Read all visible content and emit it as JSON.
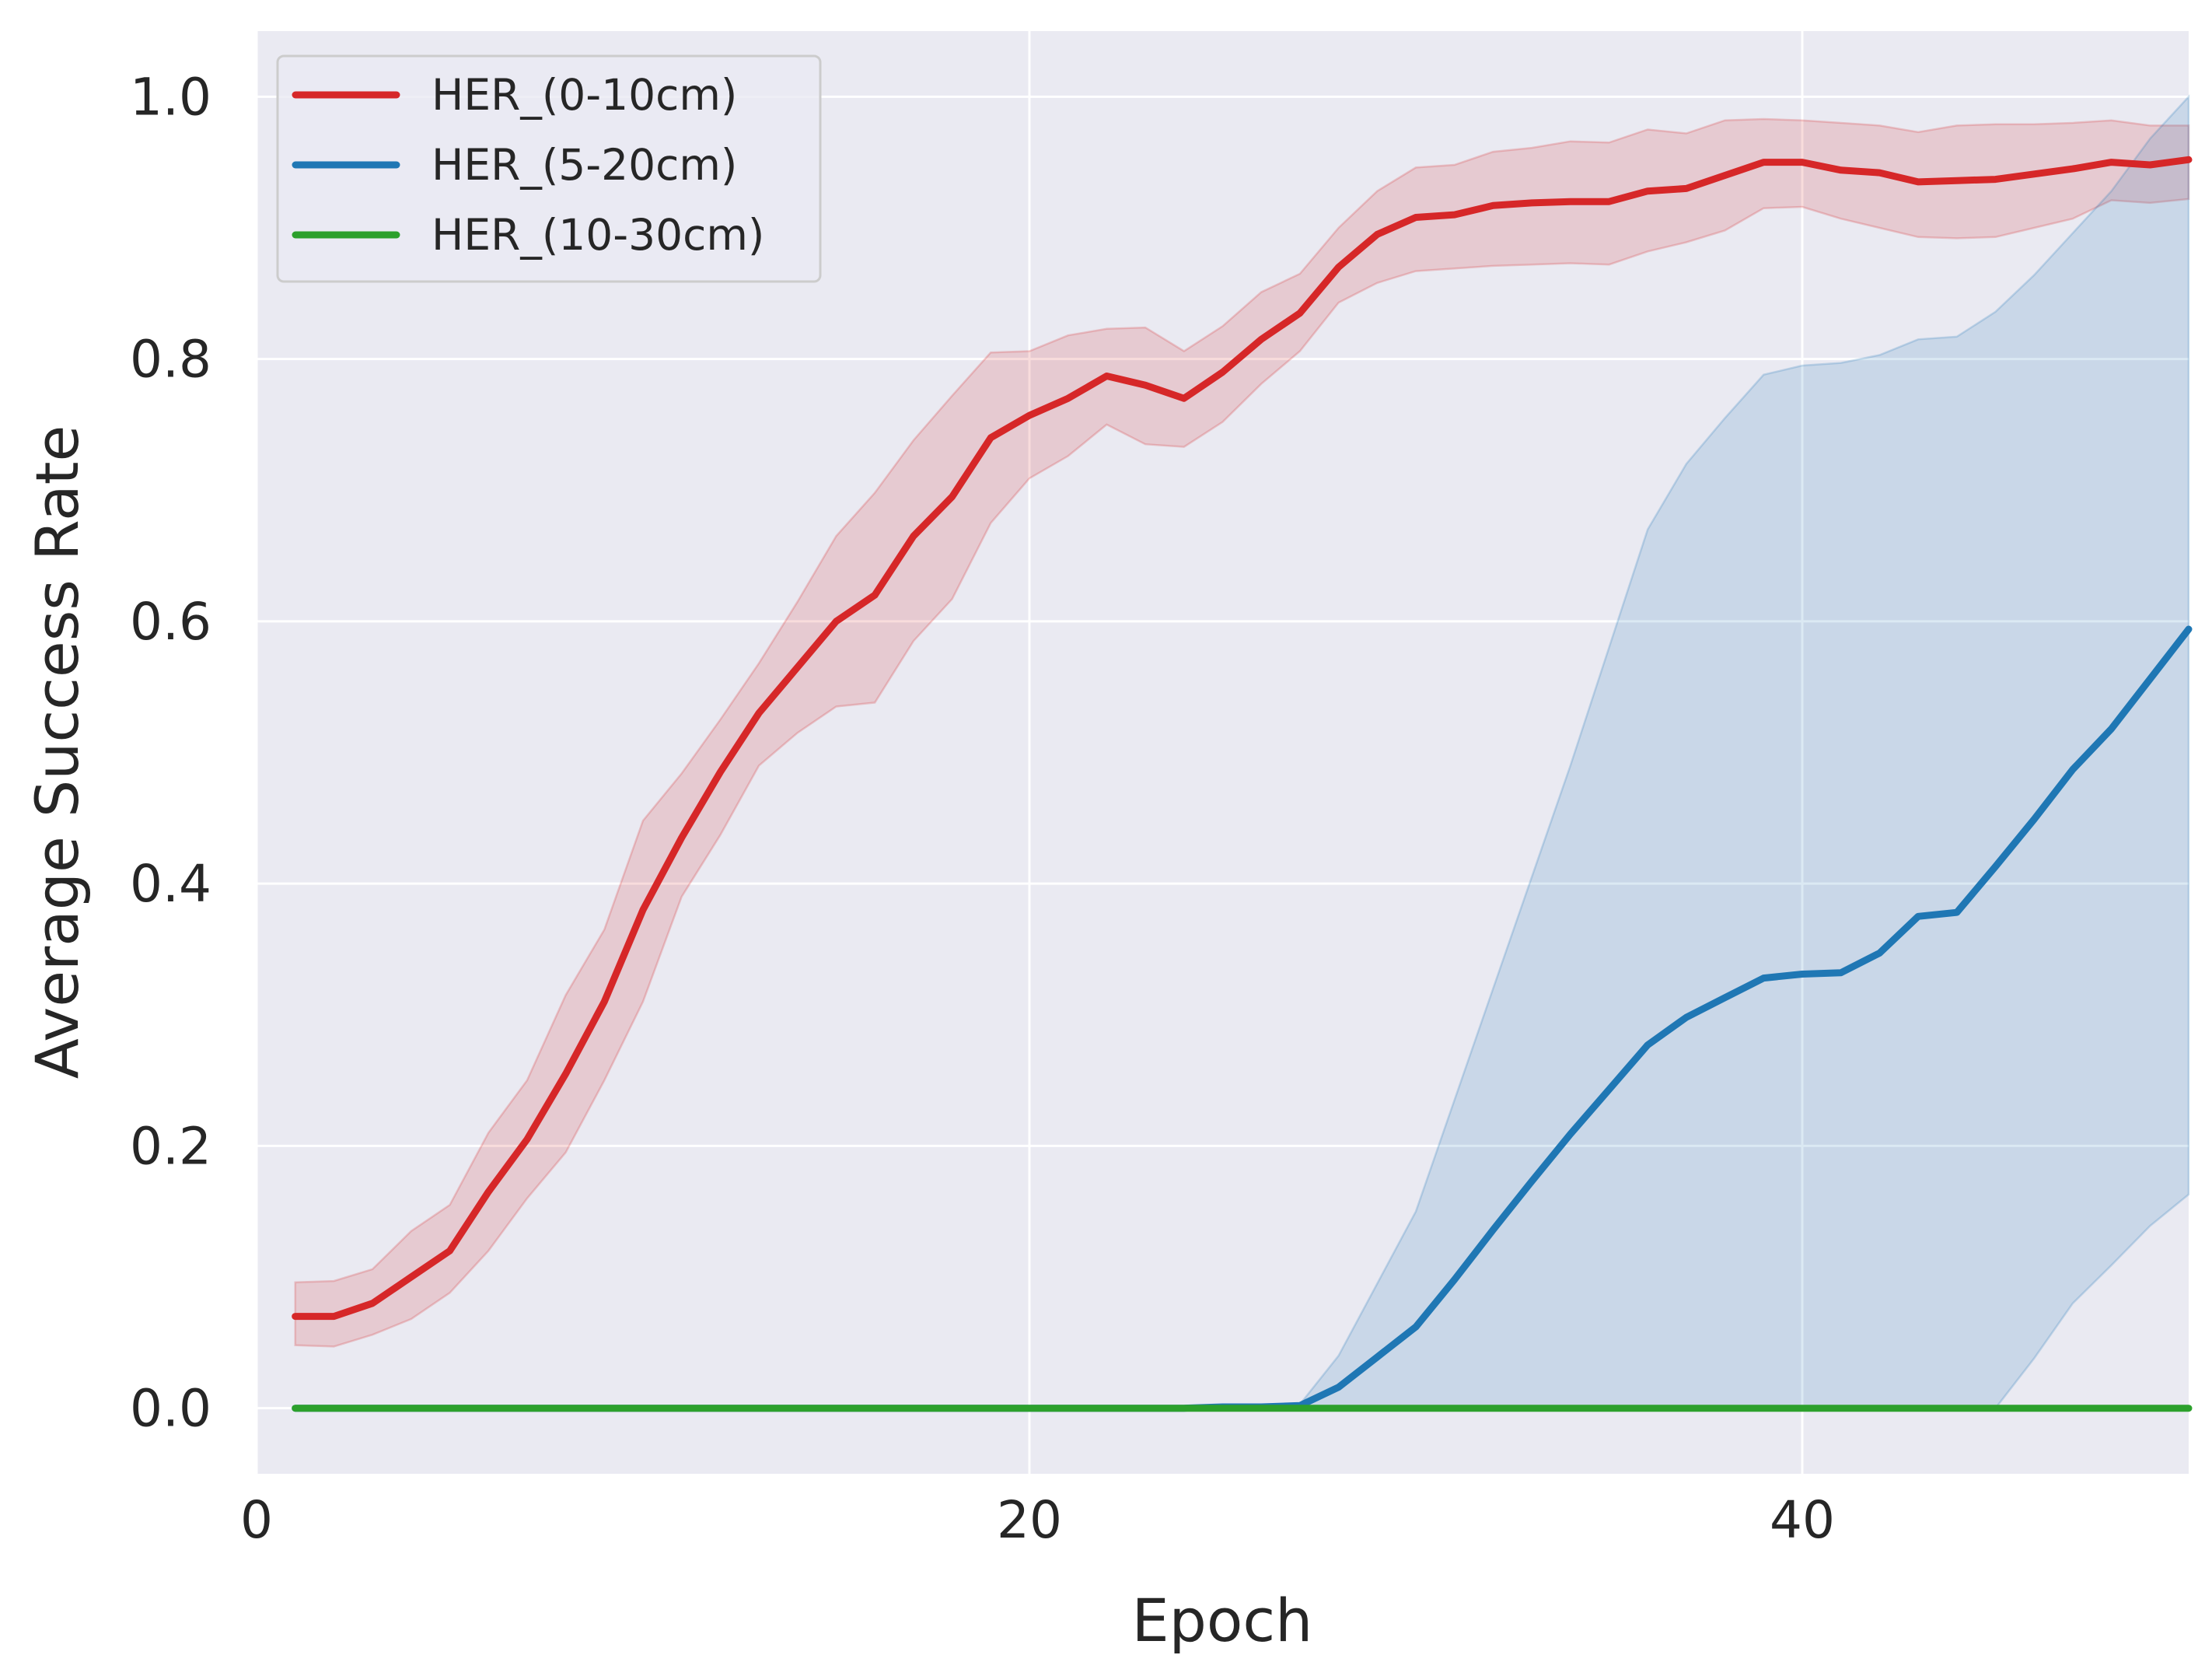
{
  "chart_data": {
    "type": "line",
    "title": "",
    "xlabel": "Epoch",
    "ylabel": "Average Success Rate",
    "xlim": [
      0,
      50
    ],
    "ylim": [
      -0.05,
      1.05
    ],
    "xticks": [
      0,
      20,
      40
    ],
    "xtick_labels": [
      "0",
      "20",
      "40"
    ],
    "yticks": [
      0.0,
      0.2,
      0.4,
      0.6,
      0.8,
      1.0
    ],
    "ytick_labels": [
      "0.0",
      "0.2",
      "0.4",
      "0.6",
      "0.8",
      "1.0"
    ],
    "grid": true,
    "legend_position": "top-left",
    "x": [
      1,
      2,
      3,
      4,
      5,
      6,
      7,
      8,
      9,
      10,
      11,
      12,
      13,
      14,
      15,
      16,
      17,
      18,
      19,
      20,
      21,
      22,
      23,
      24,
      25,
      26,
      27,
      28,
      29,
      30,
      31,
      32,
      33,
      34,
      35,
      36,
      37,
      38,
      39,
      40,
      41,
      42,
      43,
      44,
      45,
      46,
      47,
      48,
      49,
      50
    ],
    "series": [
      {
        "name": "HER_(0-10cm)",
        "color": "#d62728",
        "values": [
          0.07,
          0.07,
          0.08,
          0.1,
          0.12,
          0.165,
          0.205,
          0.255,
          0.31,
          0.38,
          0.435,
          0.485,
          0.53,
          0.565,
          0.6,
          0.62,
          0.665,
          0.695,
          0.74,
          0.757,
          0.77,
          0.787,
          0.78,
          0.77,
          0.79,
          0.815,
          0.835,
          0.87,
          0.895,
          0.908,
          0.91,
          0.917,
          0.919,
          0.92,
          0.92,
          0.928,
          0.93,
          0.94,
          0.95,
          0.95,
          0.944,
          0.942,
          0.935,
          0.936,
          0.937,
          0.941,
          0.945,
          0.95,
          0.948,
          0.952
        ],
        "lower": [
          0.048,
          0.047,
          0.056,
          0.068,
          0.088,
          0.12,
          0.16,
          0.195,
          0.25,
          0.31,
          0.39,
          0.437,
          0.49,
          0.515,
          0.535,
          0.538,
          0.585,
          0.617,
          0.675,
          0.709,
          0.726,
          0.75,
          0.735,
          0.733,
          0.752,
          0.781,
          0.806,
          0.843,
          0.858,
          0.867,
          0.869,
          0.871,
          0.872,
          0.873,
          0.872,
          0.882,
          0.889,
          0.898,
          0.915,
          0.916,
          0.907,
          0.9,
          0.893,
          0.892,
          0.893,
          0.9,
          0.907,
          0.921,
          0.919,
          0.922
        ],
        "upper": [
          0.096,
          0.097,
          0.106,
          0.135,
          0.155,
          0.21,
          0.25,
          0.315,
          0.365,
          0.448,
          0.484,
          0.525,
          0.568,
          0.615,
          0.665,
          0.698,
          0.738,
          0.772,
          0.805,
          0.806,
          0.818,
          0.823,
          0.824,
          0.806,
          0.825,
          0.851,
          0.865,
          0.9,
          0.928,
          0.946,
          0.948,
          0.958,
          0.961,
          0.966,
          0.965,
          0.975,
          0.972,
          0.982,
          0.983,
          0.982,
          0.98,
          0.978,
          0.973,
          0.978,
          0.979,
          0.979,
          0.98,
          0.982,
          0.978,
          0.978
        ]
      },
      {
        "name": "HER_(5-20cm)",
        "color": "#1f77b4",
        "values": [
          0,
          0,
          0,
          0,
          0,
          0,
          0,
          0,
          0,
          0,
          0,
          0,
          0,
          0,
          0,
          0,
          0,
          0,
          0,
          0,
          0,
          0,
          0,
          0,
          0.001,
          0.001,
          0.002,
          0.016,
          0.039,
          0.062,
          0.098,
          0.136,
          0.173,
          0.209,
          0.243,
          0.277,
          0.298,
          0.313,
          0.328,
          0.331,
          0.332,
          0.347,
          0.375,
          0.378,
          0.413,
          0.449,
          0.487,
          0.518,
          0.556,
          0.594
        ],
        "lower": [
          0,
          0,
          0,
          0,
          0,
          0,
          0,
          0,
          0,
          0,
          0,
          0,
          0,
          0,
          0,
          0,
          0,
          0,
          0,
          0,
          0,
          0,
          0,
          0,
          0,
          0,
          0,
          0,
          0,
          0,
          0,
          0,
          0,
          0,
          0,
          0,
          0,
          0,
          0,
          0,
          0,
          0,
          0,
          0,
          0,
          0.038,
          0.08,
          0.109,
          0.139,
          0.163
        ],
        "upper": [
          0,
          0,
          0,
          0,
          0,
          0,
          0,
          0,
          0,
          0,
          0,
          0,
          0,
          0,
          0,
          0,
          0,
          0,
          0,
          0,
          0,
          0,
          0,
          0,
          0.001,
          0.002,
          0.003,
          0.04,
          0.095,
          0.15,
          0.235,
          0.32,
          0.405,
          0.49,
          0.58,
          0.67,
          0.72,
          0.755,
          0.788,
          0.795,
          0.797,
          0.803,
          0.815,
          0.817,
          0.836,
          0.864,
          0.896,
          0.928,
          0.968,
          1.0
        ]
      },
      {
        "name": "HER_(10-30cm)",
        "color": "#2ca02c",
        "values": [
          0,
          0,
          0,
          0,
          0,
          0,
          0,
          0,
          0,
          0,
          0,
          0,
          0,
          0,
          0,
          0,
          0,
          0,
          0,
          0,
          0,
          0,
          0,
          0,
          0,
          0,
          0,
          0,
          0,
          0,
          0,
          0,
          0,
          0,
          0,
          0,
          0,
          0,
          0,
          0,
          0,
          0,
          0,
          0,
          0,
          0,
          0,
          0,
          0,
          0
        ]
      }
    ]
  }
}
